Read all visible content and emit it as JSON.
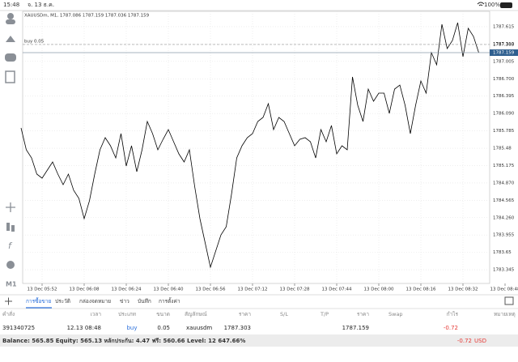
{
  "status_bar": {
    "time": "15:48",
    "date": "จ. 13 ธ.ค.",
    "battery": "100%"
  },
  "toolbar": {
    "timeframe": "M1"
  },
  "chart_data": {
    "type": "line",
    "title": "XAUUSDm, M1, 1787.086 1787.159 1787.036 1787.159",
    "color": "#000000",
    "categories": [
      null,
      null,
      null,
      null,
      "13 Dec 05:52",
      null,
      null,
      null,
      null,
      null,
      null,
      null,
      "13 Dec 06:08",
      null,
      null,
      null,
      null,
      null,
      null,
      null,
      "13 Dec 06:24",
      null,
      null,
      null,
      null,
      null,
      null,
      null,
      "13 Dec 06:40",
      null,
      null,
      null,
      null,
      null,
      null,
      null,
      "13 Dec 06:56",
      null,
      null,
      null,
      null,
      null,
      null,
      null,
      "13 Dec 07:12",
      null,
      null,
      null,
      null,
      null,
      null,
      null,
      "13 Dec 07:28",
      null,
      null,
      null,
      null,
      null,
      null,
      null,
      "13 Dec 07:44",
      null,
      null,
      null,
      null,
      null,
      null,
      null,
      "13 Dec 08:00",
      null,
      null,
      null,
      null,
      null,
      null,
      null,
      "13 Dec 08:16",
      null,
      null,
      null,
      null,
      null,
      null,
      null,
      "13 Dec 08:32",
      null,
      null,
      null,
      null,
      null,
      null,
      null,
      "13 Dec 08:48"
    ],
    "values": [
      1785.836,
      1785.452,
      1785.31,
      1785.025,
      1784.954,
      1785.096,
      1785.238,
      1785.025,
      1784.84,
      1785.025,
      1784.74,
      1784.598,
      1784.242,
      1784.556,
      1785.025,
      1785.452,
      1785.665,
      1785.523,
      1785.31,
      1785.737,
      1785.167,
      1785.523,
      1785.068,
      1785.452,
      1785.95,
      1785.737,
      1785.452,
      1785.637,
      1785.808,
      1785.594,
      1785.381,
      1785.238,
      1785.452,
      1784.812,
      1784.242,
      1783.816,
      1783.389,
      1783.673,
      1783.958,
      1784.1,
      1784.669,
      1785.31,
      1785.523,
      1785.665,
      1785.737,
      1785.95,
      1786.021,
      1786.263,
      1785.808,
      1786.021,
      1785.95,
      1785.737,
      1785.523,
      1785.637,
      1785.665,
      1785.594,
      1785.31,
      1785.808,
      1785.594,
      1785.879,
      1785.381,
      1785.523,
      1785.452,
      1786.733,
      1786.235,
      1785.95,
      1786.519,
      1786.306,
      1786.448,
      1786.448,
      1786.092,
      1786.519,
      1786.59,
      1786.235,
      1785.737,
      1786.235,
      1786.662,
      1786.448,
      1787.16,
      1786.946,
      1787.658,
      1787.231,
      1787.373,
      1787.686,
      1787.088,
      1787.587,
      1787.444,
      1787.159,
      null,
      null,
      null,
      null,
      null
    ],
    "ylim": [
      1783.104,
      1787.885
    ],
    "yticks": [
      1787.615,
      {
        "value": 1787.31,
        "label": "1787.310"
      },
      1787.005,
      {
        "value": 1786.7,
        "label": "1786.700"
      },
      1786.395,
      {
        "value": 1786.09,
        "label": "1786.090"
      },
      1785.785,
      1785.48,
      1785.175,
      {
        "value": 1784.87,
        "label": "1784.870"
      },
      1784.565,
      {
        "value": 1784.26,
        "label": "1784.260"
      },
      1783.955,
      1783.65,
      1783.345
    ],
    "grid": true,
    "order_line": {
      "label": "buy 0.05",
      "value": 1787.303
    },
    "bid_line": {
      "value": 1787.159
    }
  },
  "trade_panel": {
    "tabs": [
      "การซื้อขาย",
      "ประวัติ",
      "กล่องจดหมาย",
      "ข่าว",
      "บันทึก",
      "การตั้งค่า"
    ],
    "columns": [
      "คำสั่ง",
      "เวลา",
      "ประเภท",
      "ขนาด",
      "สัญลักษณ์",
      "ราคา",
      "S/L",
      "T/P",
      "ราคา",
      "Swap",
      "กำไร",
      "หมายเหตุ"
    ],
    "rows": [
      [
        "391340725",
        "12.13 08:48",
        "buy",
        "0.05",
        "xauusdm",
        "1787.303",
        null,
        null,
        "1787.159",
        null,
        "-0.72",
        null
      ]
    ],
    "summary": {
      "text": "Balance: 565.85 Equity: 565.13 หลักประกัน: 4.47 ฟรี: 560.66 Level: 12 647.66%",
      "profit": "-0.72",
      "currency": "USD"
    }
  }
}
